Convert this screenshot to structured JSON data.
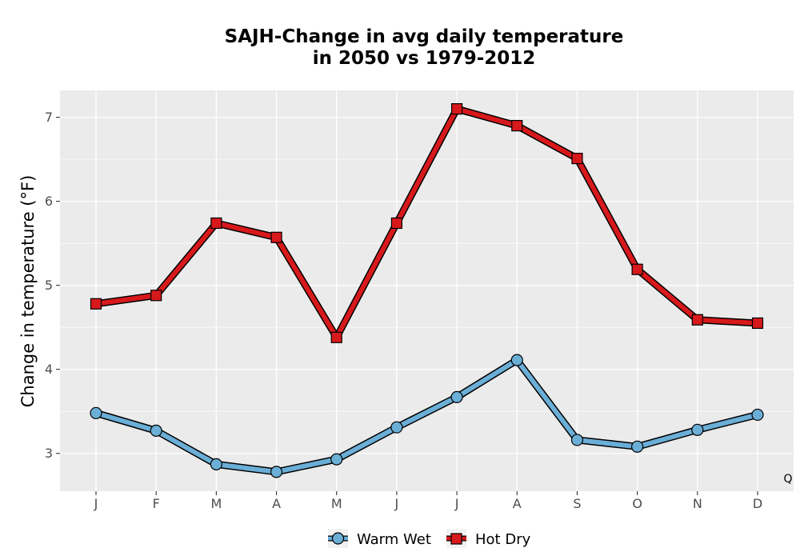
{
  "chart_data": {
    "type": "line",
    "title": [
      "SAJH-Change in avg daily temperature",
      "in 2050 vs 1979-2012"
    ],
    "xlabel": "",
    "ylabel": "Change in temperature (°F)",
    "categories": [
      "J",
      "F",
      "M",
      "A",
      "M",
      "J",
      "J",
      "A",
      "S",
      "O",
      "N",
      "D"
    ],
    "ylim": [
      2.55,
      7.32
    ],
    "yticks": [
      3,
      4,
      5,
      6,
      7
    ],
    "grid": true,
    "legend_position": "bottom",
    "annotation": "Q",
    "series": [
      {
        "name": "Warm Wet",
        "marker": "circle",
        "color": "#6baed6",
        "values": [
          3.48,
          3.27,
          2.87,
          2.78,
          2.93,
          3.31,
          3.67,
          4.11,
          3.16,
          3.08,
          3.28,
          3.46
        ]
      },
      {
        "name": "Hot Dry",
        "marker": "square",
        "color": "#d7191c",
        "values": [
          4.78,
          4.88,
          5.74,
          5.57,
          4.38,
          5.74,
          7.1,
          6.9,
          6.51,
          5.19,
          4.59,
          4.55
        ]
      }
    ]
  }
}
